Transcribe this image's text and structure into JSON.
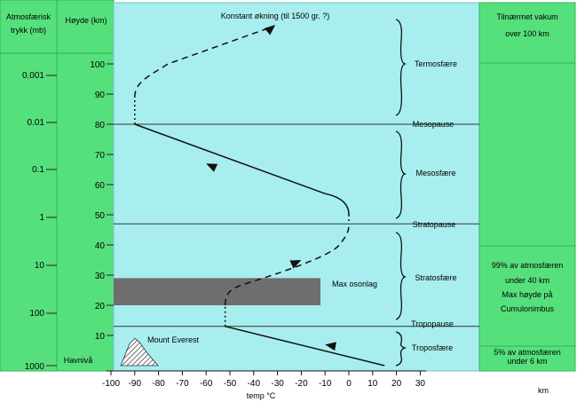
{
  "headers": {
    "pressure": [
      "Atmosfærisk",
      "trykk (mb)"
    ],
    "height": [
      "Høyde (km)"
    ],
    "vacuum": [
      "Tilnærmet vakum",
      "over 100 km"
    ]
  },
  "pressure_ticks": [
    "0.001",
    "0.01",
    "0.1",
    "1",
    "10",
    "100",
    "1000"
  ],
  "height_ticks": [
    "100",
    "90",
    "80",
    "70",
    "60",
    "50",
    "40",
    "30",
    "20",
    "10"
  ],
  "sea_level": "Havnivå",
  "temp_ticks": [
    "-100",
    "-90",
    "-80",
    "-70",
    "-60",
    "-50",
    "-40",
    "-30",
    "-20",
    "-10",
    "0",
    "10",
    "20",
    "30"
  ],
  "temp_label": "temp °C",
  "km_label": "km",
  "layers": {
    "termosfaere": "Termosfære",
    "mesopause": "Mesopause",
    "mesosfaere": "Mesosfære",
    "stratopause": "Stratopause",
    "stratosfaere": "Stratosfære",
    "tropopause": "Tropopause",
    "troposfaere": "Troposfære"
  },
  "annotations": {
    "top": "Konstant økning (til 1500 gr. ?)",
    "ozone": "Max osonlag",
    "everest": "Mount Everest"
  },
  "right_notes": {
    "n99": [
      "99% av atmosfæren",
      "under 40 km"
    ],
    "cumulo": [
      "Max høyde på",
      "Cumulonimbus"
    ],
    "n5": [
      "5% av atmosfæren",
      "under 6 km"
    ]
  },
  "colors": {
    "green": "#56e07c",
    "green_dark": "#2fb35a",
    "cyan": "#a8eeee",
    "ozone": "#6e6e6e"
  },
  "chart_data": {
    "type": "line",
    "xlabel": "temp °C",
    "ylabel": "Høyde (km)",
    "xlim": [
      -100,
      30
    ],
    "ylim": [
      0,
      100
    ],
    "temperature_profile": [
      {
        "km": 0,
        "c": 15
      },
      {
        "km": 13,
        "c": -52
      },
      {
        "km": 20,
        "c": -52
      },
      {
        "km": 40,
        "c": -8
      },
      {
        "km": 47,
        "c": 0
      },
      {
        "km": 57,
        "c": -10
      },
      {
        "km": 80,
        "c": -90
      },
      {
        "km": 89,
        "c": -90
      },
      {
        "km": 110,
        "c": -50
      }
    ],
    "layer_boundaries_km": {
      "tropopause": 13,
      "stratopause": 47,
      "mesopause": 80
    },
    "ozone_layer_km": [
      20,
      29
    ],
    "mount_everest_km": 9
  }
}
